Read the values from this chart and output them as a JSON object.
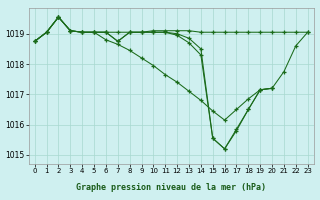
{
  "title": "Graphe pression niveau de la mer (hPa)",
  "background_color": "#cff0f0",
  "plot_bg_color": "#cff0f0",
  "line_color": "#1a6b1a",
  "grid_color": "#a8d8d0",
  "ylim": [
    1014.7,
    1019.85
  ],
  "yticks": [
    1015,
    1016,
    1017,
    1018,
    1019
  ],
  "xlim": [
    -0.5,
    23.5
  ],
  "xticks": [
    0,
    1,
    2,
    3,
    4,
    5,
    6,
    7,
    8,
    9,
    10,
    11,
    12,
    13,
    14,
    15,
    16,
    17,
    18,
    19,
    20,
    21,
    22,
    23
  ],
  "series": [
    {
      "x": [
        0,
        1,
        2,
        3,
        4,
        5,
        6,
        7,
        8,
        9,
        10,
        11,
        12,
        13,
        14,
        15,
        16,
        17,
        18,
        19,
        20,
        21,
        22,
        23
      ],
      "y": [
        1018.75,
        1019.05,
        1019.55,
        1019.1,
        1019.05,
        1019.05,
        1019.05,
        1019.05,
        1019.05,
        1019.05,
        1019.1,
        1019.1,
        1019.1,
        1019.1,
        1019.05,
        1019.05,
        1019.05,
        1019.05,
        1019.05,
        1019.05,
        1019.05,
        1019.05,
        1019.05,
        1019.05
      ]
    },
    {
      "x": [
        0,
        1,
        2,
        3,
        4,
        5,
        6,
        7,
        8,
        9,
        10,
        11,
        12,
        13,
        14,
        15,
        16,
        17,
        18,
        19,
        20,
        21,
        22,
        23
      ],
      "y": [
        1018.75,
        1019.05,
        1019.55,
        1019.1,
        1019.05,
        1019.05,
        1018.8,
        1018.65,
        1018.45,
        1018.2,
        1017.95,
        1017.65,
        1017.4,
        1017.1,
        1016.8,
        1016.45,
        1016.15,
        1016.5,
        1016.85,
        1017.15,
        1017.2,
        1017.75,
        1018.6,
        1019.05
      ]
    },
    {
      "x": [
        0,
        1,
        2,
        3,
        4,
        5,
        6,
        7,
        8,
        9,
        10,
        11,
        12,
        13,
        14,
        15,
        16,
        17,
        18,
        19,
        20
      ],
      "y": [
        1018.75,
        1019.05,
        1019.55,
        1019.1,
        1019.05,
        1019.05,
        1019.05,
        1018.75,
        1019.05,
        1019.05,
        1019.05,
        1019.05,
        1019.0,
        1018.85,
        1018.5,
        1015.55,
        1015.2,
        1015.85,
        1016.5,
        1017.15,
        1017.2
      ]
    },
    {
      "x": [
        0,
        1,
        2,
        3,
        4,
        5,
        6,
        7,
        8,
        9,
        10,
        11,
        12,
        13,
        14,
        15,
        16,
        17,
        18,
        19,
        20
      ],
      "y": [
        1018.75,
        1019.05,
        1019.55,
        1019.1,
        1019.05,
        1019.05,
        1019.05,
        1018.75,
        1019.05,
        1019.05,
        1019.05,
        1019.05,
        1018.95,
        1018.7,
        1018.3,
        1015.55,
        1015.2,
        1015.8,
        1016.5,
        1017.15,
        1017.2
      ]
    }
  ]
}
